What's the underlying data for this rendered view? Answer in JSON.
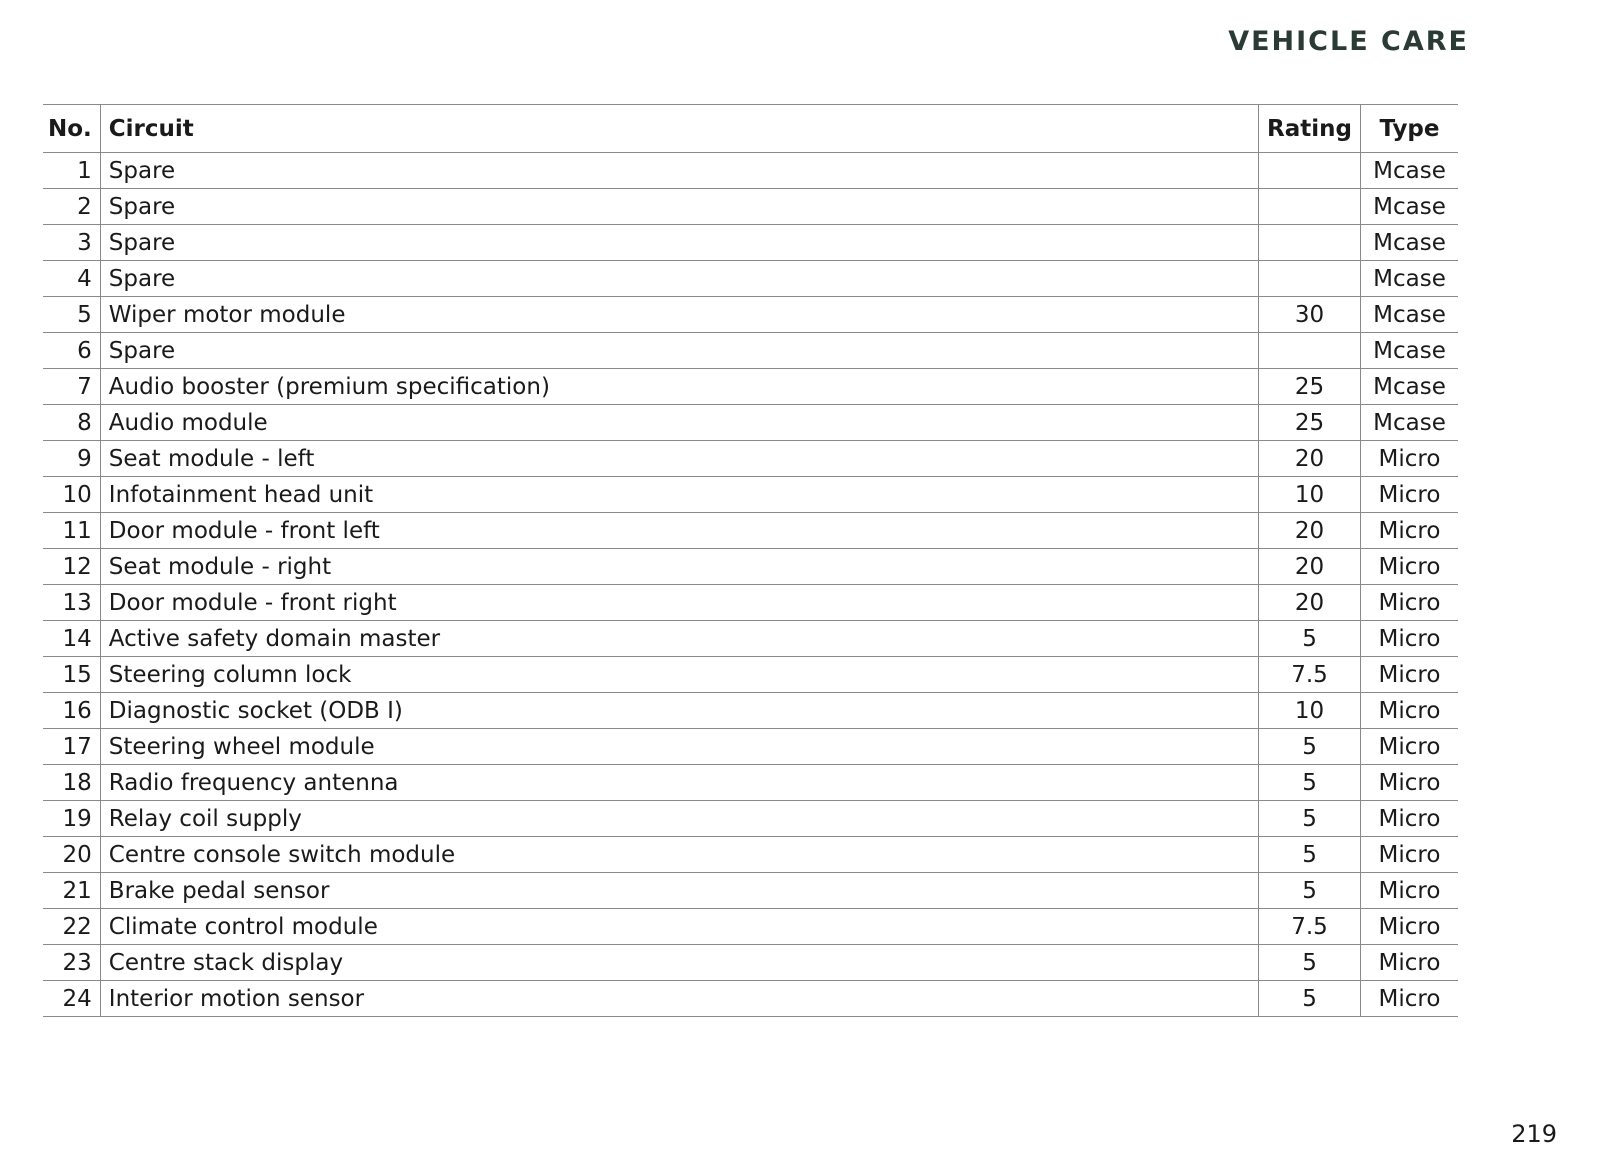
{
  "header": {
    "section_title": "VEHICLE CARE"
  },
  "table": {
    "columns": [
      "No.",
      "Circuit",
      "Rating",
      "Type"
    ],
    "rows": [
      [
        "1",
        "Spare",
        "",
        "Mcase"
      ],
      [
        "2",
        "Spare",
        "",
        "Mcase"
      ],
      [
        "3",
        "Spare",
        "",
        "Mcase"
      ],
      [
        "4",
        "Spare",
        "",
        "Mcase"
      ],
      [
        "5",
        "Wiper motor module",
        "30",
        "Mcase"
      ],
      [
        "6",
        "Spare",
        "",
        "Mcase"
      ],
      [
        "7",
        "Audio booster (premium specification)",
        "25",
        "Mcase"
      ],
      [
        "8",
        "Audio module",
        "25",
        "Mcase"
      ],
      [
        "9",
        "Seat module - left",
        "20",
        "Micro"
      ],
      [
        "10",
        "Infotainment head unit",
        "10",
        "Micro"
      ],
      [
        "11",
        "Door module - front left",
        "20",
        "Micro"
      ],
      [
        "12",
        "Seat module - right",
        "20",
        "Micro"
      ],
      [
        "13",
        "Door module - front right",
        "20",
        "Micro"
      ],
      [
        "14",
        "Active safety domain master",
        "5",
        "Micro"
      ],
      [
        "15",
        "Steering column lock",
        "7.5",
        "Micro"
      ],
      [
        "16",
        "Diagnostic socket (ODB I)",
        "10",
        "Micro"
      ],
      [
        "17",
        "Steering wheel module",
        "5",
        "Micro"
      ],
      [
        "18",
        "Radio frequency antenna",
        "5",
        "Micro"
      ],
      [
        "19",
        "Relay coil supply",
        "5",
        "Micro"
      ],
      [
        "20",
        "Centre console switch module",
        "5",
        "Micro"
      ],
      [
        "21",
        "Brake pedal sensor",
        "5",
        "Micro"
      ],
      [
        "22",
        "Climate control module",
        "7.5",
        "Micro"
      ],
      [
        "23",
        "Centre stack display",
        "5",
        "Micro"
      ],
      [
        "24",
        "Interior motion sensor",
        "5",
        "Micro"
      ]
    ]
  },
  "footer": {
    "page_number": "219"
  }
}
